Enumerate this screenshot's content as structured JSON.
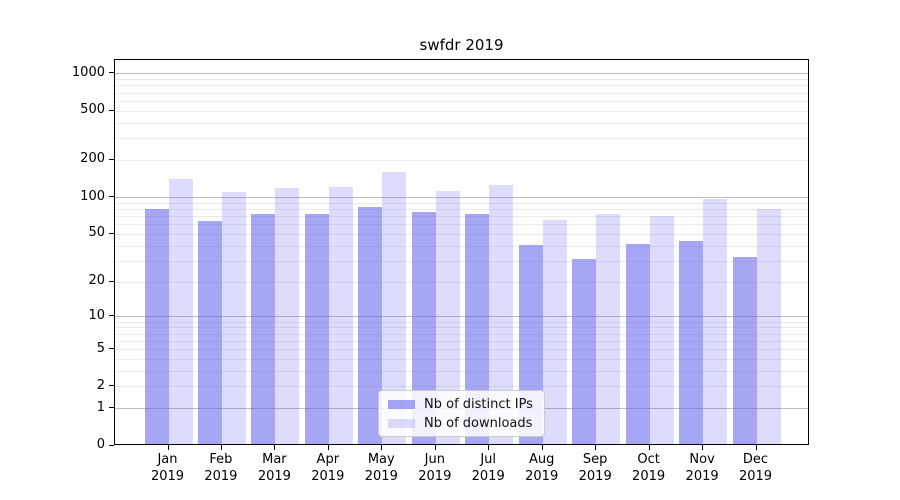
{
  "title": "swfdr 2019",
  "chart_data": {
    "type": "bar",
    "title": "swfdr 2019",
    "x_categories_line1": [
      "Jan",
      "Feb",
      "Mar",
      "Apr",
      "May",
      "Jun",
      "Jul",
      "Aug",
      "Sep",
      "Oct",
      "Nov",
      "Dec"
    ],
    "x_categories_line2": "2019",
    "series": [
      {
        "name": "Nb of distinct IPs",
        "values": [
          78,
          62,
          71,
          70,
          81,
          73,
          71,
          39,
          30,
          40,
          42,
          31
        ]
      },
      {
        "name": "Nb of downloads",
        "values": [
          137,
          106,
          115,
          117,
          156,
          109,
          122,
          63,
          71,
          68,
          93,
          78
        ]
      }
    ],
    "yticks": [
      0,
      1,
      2,
      5,
      10,
      20,
      50,
      100,
      200,
      500,
      1000
    ],
    "y_scale": "log1p",
    "ylim": [
      0,
      1297
    ],
    "grid": true,
    "legend_position": "lower center"
  },
  "legend": {
    "items": [
      {
        "label": "Nb of distinct IPs"
      },
      {
        "label": "Nb of downloads"
      }
    ]
  },
  "colors": {
    "bar_base": "#6666ee",
    "bar_alpha_distinct_ips": 0.58,
    "bar_alpha_downloads": 0.22,
    "grid_minor": "#ebebeb",
    "grid_major": "#bdbdbd",
    "spine": "#000000"
  }
}
